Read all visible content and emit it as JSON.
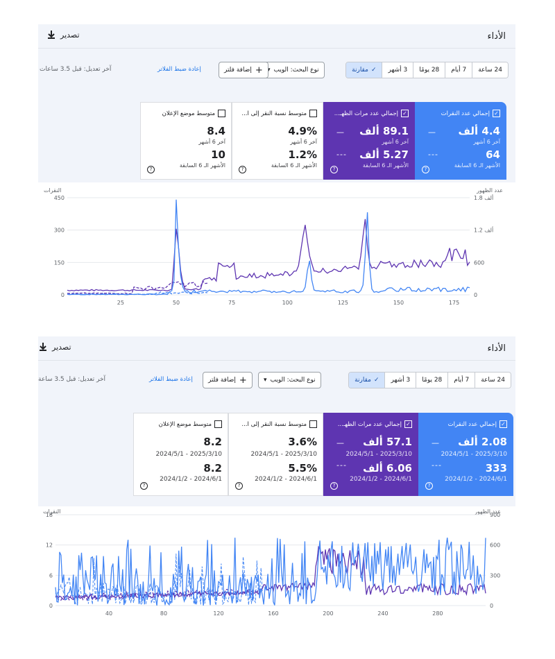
{
  "panels": [
    {
      "title": "الأداء",
      "export_label": "تصدير",
      "ranges": [
        "24 ساعة",
        "7 أيام",
        "28 يومًا",
        "3 أشهر"
      ],
      "compare_label": "مقارنة",
      "search_type_label": "نوع البحث: الويب",
      "add_filter_label": "إضافة فلتر",
      "reset_filters_label": "إعادة ضبط الفلاتر",
      "last_updated": "آخر تعديل: قبل 3.5 ساعات",
      "cards": [
        {
          "label": "إجمالي عدد النقرات",
          "checked": true,
          "style": "blue",
          "v1": "4.4 ألف",
          "s1": "آخر 6 أشهر",
          "v2": "64",
          "s2": "الأشهر الـ 6 السابقة",
          "dash1": "—",
          "dash2": "---"
        },
        {
          "label": "إجمالي عدد مرات الظهـ...",
          "checked": true,
          "style": "purple",
          "v1": "89.1 ألف",
          "s1": "آخر 6 أشهر",
          "v2": "5.27 ألف",
          "s2": "الأشهر الـ 6 السابقة",
          "dash1": "—",
          "dash2": "---"
        },
        {
          "label": "متوسط نسبة النقر إلى ا...",
          "checked": false,
          "style": "white",
          "v1": "4.9%",
          "s1": "آخر 6 أشهر",
          "v2": "1.2%",
          "s2": "الأشهر الـ 6 السابقة"
        },
        {
          "label": "متوسط موضع الإعلان",
          "checked": false,
          "style": "white",
          "v1": "8.4",
          "s1": "آخر 6 أشهر",
          "v2": "10",
          "s2": "الأشهر الـ 6 السابقة"
        }
      ],
      "chart_data": {
        "type": "line",
        "left_axis_label": "النقرات",
        "right_axis_label": "عدد الظهور",
        "y_left_ticks": [
          "450",
          "300",
          "150",
          "0"
        ],
        "y_left_max": 450,
        "y_right_ticks": [
          "1.8 ألف",
          "1.2 ألف",
          "600",
          "0"
        ],
        "x_ticks": [
          25,
          50,
          75,
          100,
          125,
          150,
          175
        ],
        "x_range": [
          1,
          182
        ],
        "colors": {
          "clicks": "#4285f4",
          "impressions": "#5e35b1"
        }
      }
    },
    {
      "title": "الأداء",
      "export_label": "تصدير",
      "ranges": [
        "24 ساعة",
        "7 أيام",
        "28 يومًا",
        "3 أشهر"
      ],
      "compare_label": "مقارنة",
      "search_type_label": "نوع البحث: الويب",
      "add_filter_label": "إضافة فلتر",
      "reset_filters_label": "إعادة ضبط الفلاتر",
      "last_updated": "آخر تعديل: قبل 3.5 ساعة",
      "cards": [
        {
          "label": "إجمالي عدد النقرات",
          "checked": true,
          "style": "blue",
          "v1": "2.08 ألف",
          "s1": "2025/3/10 - 2024/5/1",
          "v2": "333",
          "s2": "2024/6/1 - 2024/1/2",
          "dash1": "—",
          "dash2": "---"
        },
        {
          "label": "إجمالي عدد مرات الظهـ...",
          "checked": true,
          "style": "purple",
          "v1": "57.1 ألف",
          "s1": "2025/3/10 - 2024/5/1",
          "v2": "6.06 ألف",
          "s2": "2024/6/1 - 2024/1/2",
          "dash1": "—",
          "dash2": "---"
        },
        {
          "label": "متوسط نسبة النقر إلى ا...",
          "checked": false,
          "style": "white",
          "v1": "3.6%",
          "s1": "2025/3/10 - 2024/5/1",
          "v2": "5.5%",
          "s2": "2024/6/1 - 2024/1/2"
        },
        {
          "label": "متوسط موضع الإعلان",
          "checked": false,
          "style": "white",
          "v1": "8.2",
          "s1": "2025/3/10 - 2024/5/1",
          "v2": "8.2",
          "s2": "2024/6/1 - 2024/1/2"
        }
      ],
      "chart_data": {
        "type": "line",
        "left_axis_label": "النقرات",
        "right_axis_label": "عدد الظهور",
        "y_left_ticks": [
          "18",
          "12",
          "6",
          "0"
        ],
        "y_left_max": 18,
        "y_right_ticks": [
          "900",
          "600",
          "300",
          "0"
        ],
        "x_ticks": [
          40,
          80,
          120,
          160,
          200,
          240,
          280
        ],
        "x_range": [
          1,
          315
        ],
        "colors": {
          "clicks": "#4285f4",
          "impressions": "#5e35b1"
        }
      }
    }
  ]
}
